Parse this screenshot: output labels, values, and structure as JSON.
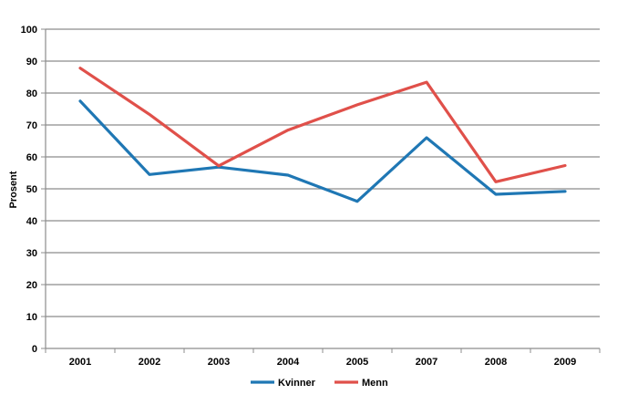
{
  "chart_data": {
    "type": "line",
    "title": "",
    "xlabel": "",
    "ylabel": "Prosent",
    "categories": [
      "2001",
      "2002",
      "2003",
      "2004",
      "2005",
      "2007",
      "2008",
      "2009"
    ],
    "ylim": [
      0,
      100
    ],
    "yticks": [
      0,
      10,
      20,
      30,
      40,
      50,
      60,
      70,
      80,
      90,
      100
    ],
    "grid": true,
    "legend_position": "bottom",
    "series": [
      {
        "name": "Kvinner",
        "color": "#1f77b4",
        "values": [
          77.5,
          54.5,
          56.8,
          54.3,
          46.1,
          66.0,
          48.3,
          49.2
        ]
      },
      {
        "name": "Menn",
        "color": "#e0504a",
        "values": [
          87.8,
          73.3,
          57.2,
          68.4,
          76.3,
          83.4,
          52.2,
          57.3
        ]
      }
    ]
  }
}
